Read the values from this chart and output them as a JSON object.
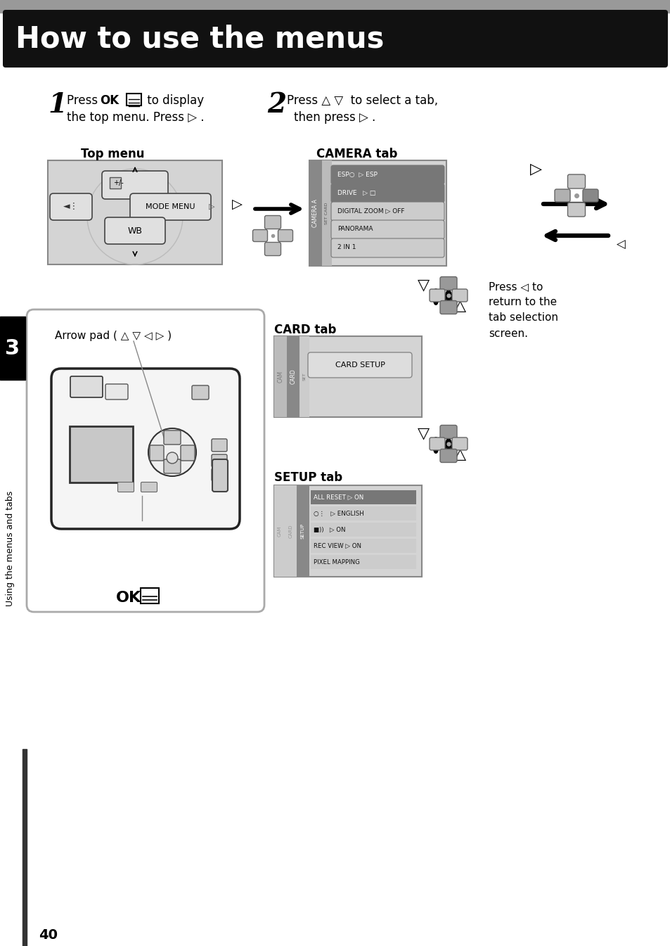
{
  "title": "How to use the menus",
  "title_bg": "#1a1a1a",
  "title_text_color": "#ffffff",
  "page_bg": "#ffffff",
  "page_number": "40",
  "sidebar_text": "Using the menus and tabs",
  "sidebar_bg": "#000000",
  "sidebar_number": "3",
  "gray_light": "#d4d4d4",
  "gray_medium": "#aaaaaa",
  "gray_dark": "#888888",
  "top_menu_label": "Top menu",
  "camera_tab_label": "CAMERA tab",
  "card_tab_label": "CARD tab",
  "setup_tab_label": "SETUP tab",
  "press_left_text": "Press ◁ to\nreturn to the\ntab selection\nscreen.",
  "camera_items": [
    {
      "text": "ESP○  ▷ ESP",
      "highlight": true
    },
    {
      "text": "DRIVE   ▷ □",
      "highlight": true
    },
    {
      "text": "DIGITAL ZOOM ▷ OFF",
      "highlight": false
    },
    {
      "text": "PANORAMA",
      "highlight": false
    },
    {
      "text": "2 IN 1",
      "highlight": false
    }
  ],
  "setup_items": [
    {
      "text": "ALL RESET ▷ ON",
      "highlight": true
    },
    {
      "text": "○⋮   ▷ ENGLISH",
      "highlight": false
    },
    {
      "text": "■))   ▷ ON",
      "highlight": false
    },
    {
      "text": "REC VIEW ▷ ON",
      "highlight": false
    },
    {
      "text": "PIXEL MAPPING",
      "highlight": false
    }
  ]
}
